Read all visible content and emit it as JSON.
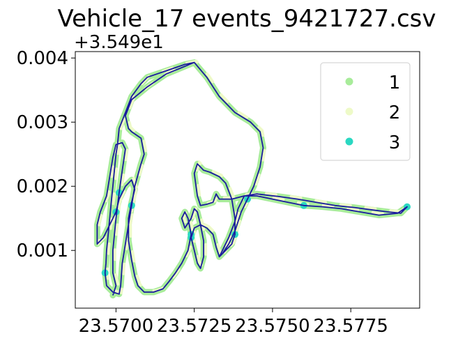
{
  "chart_data": {
    "type": "scatter",
    "title": "Vehicle_17 events_9421727.csv",
    "xlabel": "",
    "ylabel": "",
    "xlim": [
      23.5687,
      23.5797
    ],
    "ylim": [
      0.0001,
      0.0041
    ],
    "y_offset_text": "+3.549e1",
    "x_ticks": [
      {
        "value": 23.57,
        "label": "23.5700"
      },
      {
        "value": 23.5725,
        "label": "23.5725"
      },
      {
        "value": 23.575,
        "label": "23.5750"
      },
      {
        "value": 23.5775,
        "label": "23.5775"
      }
    ],
    "y_ticks": [
      {
        "value": 0.001,
        "label": "0.001"
      },
      {
        "value": 0.002,
        "label": "0.002"
      },
      {
        "value": 0.003,
        "label": "0.003"
      },
      {
        "value": 0.004,
        "label": "0.004"
      }
    ],
    "legend_position": "top-right",
    "series": [
      {
        "name": "1",
        "color": "#a8ec9a"
      },
      {
        "name": "2",
        "color": "#eefac8"
      },
      {
        "name": "3",
        "color": "#2ad8c2"
      }
    ],
    "line_color": "#1a1a9e",
    "track": [
      [
        23.5725,
        0.00393
      ],
      [
        23.5722,
        0.0039
      ],
      [
        23.5716,
        0.0038
      ],
      [
        23.571,
        0.0037
      ],
      [
        23.5708,
        0.0036
      ],
      [
        23.5705,
        0.0034
      ],
      [
        23.5703,
        0.00315
      ],
      [
        23.5701,
        0.0029
      ],
      [
        23.57005,
        0.00265
      ],
      [
        23.57,
        0.0025
      ],
      [
        23.56995,
        0.00225
      ],
      [
        23.5699,
        0.002
      ],
      [
        23.56985,
        0.00175
      ],
      [
        23.5698,
        0.0015
      ],
      [
        23.56975,
        0.00125
      ],
      [
        23.5697,
        0.001
      ],
      [
        23.56968,
        0.0008
      ],
      [
        23.56965,
        0.00065
      ],
      [
        23.5697,
        0.00045
      ],
      [
        23.5699,
        0.00035
      ],
      [
        23.5701,
        0.00032
      ],
      [
        23.57015,
        0.00045
      ],
      [
        23.5702,
        0.0008
      ],
      [
        23.5703,
        0.0011
      ],
      [
        23.5704,
        0.0014
      ],
      [
        23.5705,
        0.0017
      ],
      [
        23.5706,
        0.002
      ],
      [
        23.5708,
        0.00235
      ],
      [
        23.5709,
        0.0025
      ],
      [
        23.5708,
        0.00275
      ],
      [
        23.5705,
        0.00285
      ],
      [
        23.5704,
        0.0029
      ],
      [
        23.5703,
        0.0031
      ],
      [
        23.5705,
        0.00335
      ],
      [
        23.571,
        0.00355
      ],
      [
        23.5716,
        0.00375
      ],
      [
        23.5721,
        0.00385
      ],
      [
        23.5725,
        0.00393
      ],
      [
        23.5729,
        0.0037
      ],
      [
        23.5733,
        0.0034
      ],
      [
        23.5738,
        0.00315
      ],
      [
        23.5743,
        0.003
      ],
      [
        23.5746,
        0.00285
      ],
      [
        23.5747,
        0.0026
      ],
      [
        23.5746,
        0.0023
      ],
      [
        23.5744,
        0.002
      ],
      [
        23.5742,
        0.0018
      ],
      [
        23.574,
        0.0016
      ],
      [
        23.5738,
        0.0013
      ],
      [
        23.5736,
        0.0011
      ],
      [
        23.5734,
        0.00095
      ],
      [
        23.5733,
        0.0009
      ],
      [
        23.5734,
        0.001
      ],
      [
        23.5736,
        0.0012
      ],
      [
        23.5738,
        0.00145
      ],
      [
        23.5739,
        0.00165
      ],
      [
        23.5741,
        0.00185
      ],
      [
        23.5745,
        0.00188
      ],
      [
        23.5752,
        0.00184
      ],
      [
        23.5758,
        0.0018
      ],
      [
        23.5764,
        0.00175
      ],
      [
        23.577,
        0.0017
      ],
      [
        23.5776,
        0.00167
      ],
      [
        23.5782,
        0.00163
      ],
      [
        23.5787,
        0.0016
      ],
      [
        23.5791,
        0.00158
      ],
      [
        23.5793,
        0.00168
      ],
      [
        23.579,
        0.00158
      ],
      [
        23.5784,
        0.00155
      ],
      [
        23.5778,
        0.0016
      ],
      [
        23.5772,
        0.00165
      ],
      [
        23.5766,
        0.00168
      ],
      [
        23.576,
        0.0017
      ],
      [
        23.5755,
        0.00175
      ],
      [
        23.575,
        0.0018
      ],
      [
        23.5745,
        0.00185
      ],
      [
        23.5741,
        0.00185
      ],
      [
        23.5737,
        0.0018
      ],
      [
        23.5733,
        0.0018
      ],
      [
        23.5732,
        0.00188
      ],
      [
        23.5731,
        0.00175
      ],
      [
        23.5729,
        0.00172
      ],
      [
        23.5727,
        0.0017
      ],
      [
        23.5726,
        0.00185
      ],
      [
        23.5725,
        0.0022
      ],
      [
        23.5726,
        0.00235
      ],
      [
        23.5728,
        0.00225
      ],
      [
        23.573,
        0.00222
      ],
      [
        23.5733,
        0.00215
      ],
      [
        23.5735,
        0.00205
      ],
      [
        23.5737,
        0.0018
      ],
      [
        23.5738,
        0.0015
      ],
      [
        23.5738,
        0.00125
      ],
      [
        23.5737,
        0.0011
      ],
      [
        23.5735,
        0.001
      ],
      [
        23.5733,
        0.0009
      ],
      [
        23.5732,
        0.00105
      ],
      [
        23.5731,
        0.00125
      ],
      [
        23.5729,
        0.00135
      ],
      [
        23.5727,
        0.0014
      ],
      [
        23.5725,
        0.00135
      ],
      [
        23.5724,
        0.0012
      ],
      [
        23.5725,
        0.001
      ],
      [
        23.5726,
        0.0008
      ],
      [
        23.5727,
        0.00072
      ],
      [
        23.5728,
        0.0009
      ],
      [
        23.5728,
        0.00115
      ],
      [
        23.5727,
        0.0014
      ],
      [
        23.5726,
        0.0016
      ],
      [
        23.5725,
        0.00165
      ],
      [
        23.5724,
        0.0015
      ],
      [
        23.5722,
        0.00135
      ],
      [
        23.5721,
        0.0015
      ],
      [
        23.5722,
        0.0016
      ],
      [
        23.5723,
        0.0015
      ],
      [
        23.5724,
        0.00125
      ],
      [
        23.5723,
        0.001
      ],
      [
        23.5721,
        0.0008
      ],
      [
        23.5719,
        0.00065
      ],
      [
        23.5717,
        0.00052
      ],
      [
        23.5715,
        0.0004
      ],
      [
        23.5712,
        0.00035
      ],
      [
        23.5709,
        0.00035
      ],
      [
        23.5707,
        0.00045
      ],
      [
        23.5706,
        0.0006
      ],
      [
        23.5705,
        0.00085
      ],
      [
        23.5704,
        0.00115
      ],
      [
        23.5704,
        0.0015
      ],
      [
        23.5705,
        0.00175
      ],
      [
        23.5706,
        0.00195
      ],
      [
        23.5705,
        0.0021
      ],
      [
        23.5703,
        0.002
      ],
      [
        23.5701,
        0.0018
      ],
      [
        23.57,
        0.0016
      ],
      [
        23.5698,
        0.0014
      ],
      [
        23.5696,
        0.0012
      ],
      [
        23.5694,
        0.0011
      ],
      [
        23.5694,
        0.0012
      ],
      [
        23.5694,
        0.0014
      ],
      [
        23.5695,
        0.0016
      ],
      [
        23.5697,
        0.00185
      ],
      [
        23.5698,
        0.00215
      ],
      [
        23.5699,
        0.00245
      ],
      [
        23.57,
        0.00265
      ],
      [
        23.5702,
        0.00268
      ],
      [
        23.5703,
        0.00258
      ],
      [
        23.5702,
        0.00225
      ],
      [
        23.5701,
        0.0019
      ],
      [
        23.57,
        0.0015
      ],
      [
        23.5699,
        0.001
      ],
      [
        23.5699,
        0.00065
      ],
      [
        23.57,
        0.00045
      ],
      [
        23.5699,
        0.0003
      ]
    ]
  }
}
